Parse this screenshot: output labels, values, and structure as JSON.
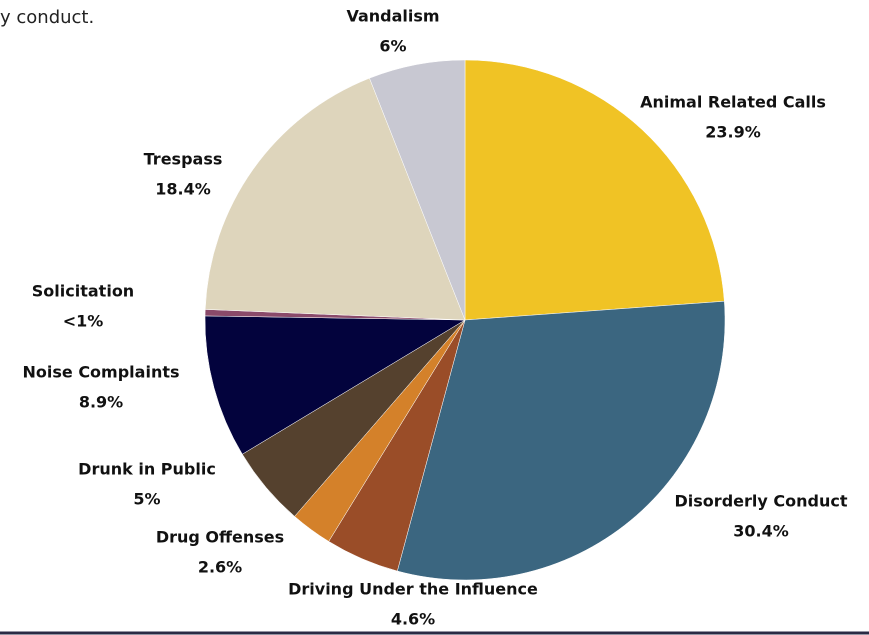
{
  "intro": "y conduct.",
  "chart_data": {
    "type": "pie",
    "categories": [
      "Animal Related Calls",
      "Disorderly Conduct",
      "Driving Under the Influence",
      "Drug Offenses",
      "Drunk in Public",
      "Noise Complaints",
      "Solicitation",
      "Trespass",
      "Vandalism"
    ],
    "values": [
      23.9,
      30.4,
      4.6,
      2.6,
      5,
      8.9,
      0.4,
      18.4,
      6
    ],
    "value_labels": [
      "23.9%",
      "30.4%",
      "4.6%",
      "2.6%",
      "5%",
      "8.9%",
      "<1%",
      "18.4%",
      "6%"
    ],
    "colors": [
      "#f0c325",
      "#3b6680",
      "#9a4d28",
      "#d4812a",
      "#55412e",
      "#03033d",
      "#8a4a6a",
      "#ded5bc",
      "#c8c8d2"
    ]
  }
}
